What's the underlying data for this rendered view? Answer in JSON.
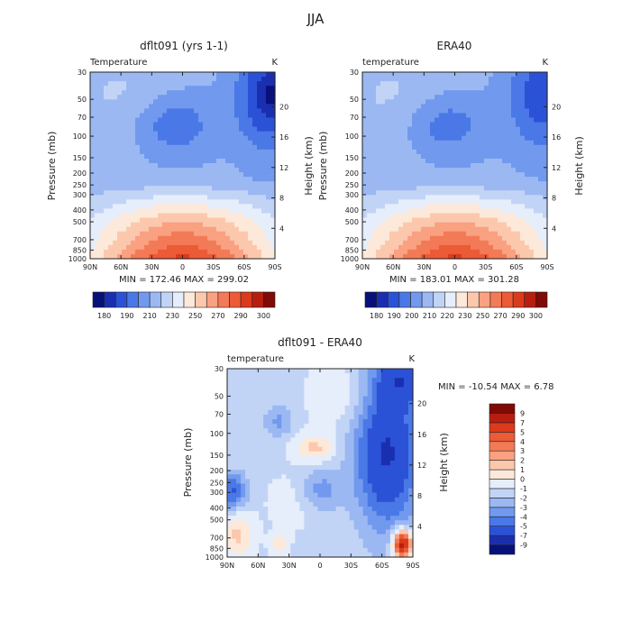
{
  "figure": {
    "title": "JJA"
  },
  "palettes": {
    "absolute": [
      "#08107a",
      "#1a2fb0",
      "#2b52d6",
      "#4a78e6",
      "#7199ee",
      "#9bb8f2",
      "#c2d4f6",
      "#e6eefb",
      "#fde9d9",
      "#fcc8ad",
      "#f9a181",
      "#f37a56",
      "#ec5a36",
      "#dc3a1c",
      "#b81e10",
      "#800a05"
    ],
    "difference": [
      "#08107a",
      "#1a2fb0",
      "#2b52d6",
      "#4a78e6",
      "#7199ee",
      "#9bb8f2",
      "#c2d4f6",
      "#e6eefb",
      "#fde9d9",
      "#fcc8ad",
      "#f9a181",
      "#f37a56",
      "#ec5a36",
      "#dc3a1c",
      "#b81e10",
      "#800a05"
    ]
  },
  "chart_data": [
    {
      "type": "heatmap",
      "title": "dflt091 (yrs 1-1)",
      "left_label": "Temperature",
      "right_label": "K",
      "ylabel": "Pressure (mb)",
      "y2label": "Height (km)",
      "x_ticks": [
        "90N",
        "60N",
        "30N",
        "0",
        "30S",
        "60S",
        "90S"
      ],
      "x_values": [
        90,
        60,
        30,
        0,
        -30,
        -60,
        -90
      ],
      "y_ticks": [
        "30",
        "50",
        "70",
        "100",
        "150",
        "200",
        "250",
        "300",
        "400",
        "500",
        "700",
        "850",
        "1000"
      ],
      "y_values": [
        30,
        50,
        70,
        100,
        150,
        200,
        250,
        300,
        400,
        500,
        700,
        850,
        1000
      ],
      "y2_ticks": [
        "4",
        "8",
        "12",
        "16",
        "20"
      ],
      "y2_values": [
        4,
        8,
        12,
        16,
        20
      ],
      "ylim": [
        1000,
        30
      ],
      "xlim": [
        90,
        -90
      ],
      "stats_text": "MIN = 172.46   MAX = 299.02",
      "min": 172.46,
      "max": 299.02,
      "colorbar_levels": [
        "180",
        "190",
        "200",
        "210",
        "220",
        "230",
        "240",
        "250",
        "260",
        "270",
        "280",
        "290",
        "300"
      ],
      "colorbar_shown": [
        "180",
        "190",
        "210",
        "230",
        "250",
        "270",
        "290",
        "300"
      ]
    },
    {
      "type": "heatmap",
      "title": "ERA40",
      "left_label": "temperature",
      "right_label": "K",
      "ylabel": "Pressure (mb)",
      "y2label": "Height (km)",
      "x_ticks": [
        "90N",
        "60N",
        "30N",
        "0",
        "30S",
        "60S",
        "90S"
      ],
      "x_values": [
        90,
        60,
        30,
        0,
        -30,
        -60,
        -90
      ],
      "y_ticks": [
        "30",
        "50",
        "70",
        "100",
        "150",
        "200",
        "250",
        "300",
        "400",
        "500",
        "700",
        "850",
        "1000"
      ],
      "y_values": [
        30,
        50,
        70,
        100,
        150,
        200,
        250,
        300,
        400,
        500,
        700,
        850,
        1000
      ],
      "y2_ticks": [
        "4",
        "8",
        "12",
        "16",
        "20"
      ],
      "y2_values": [
        4,
        8,
        12,
        16,
        20
      ],
      "ylim": [
        1000,
        30
      ],
      "xlim": [
        90,
        -90
      ],
      "stats_text": "MIN = 183.01   MAX = 301.28",
      "min": 183.01,
      "max": 301.28,
      "colorbar_shown": [
        "180",
        "190",
        "200",
        "210",
        "220",
        "230",
        "250",
        "270",
        "290",
        "300"
      ]
    },
    {
      "type": "heatmap",
      "title": "dflt091 - ERA40",
      "left_label": "temperature",
      "right_label": "K",
      "ylabel": "Pressure (mb)",
      "y2label": "Height (km)",
      "x_ticks": [
        "90N",
        "60N",
        "30N",
        "0",
        "30S",
        "60S",
        "90S"
      ],
      "x_values": [
        90,
        60,
        30,
        0,
        -30,
        -60,
        -90
      ],
      "y_ticks": [
        "30",
        "50",
        "70",
        "100",
        "150",
        "200",
        "250",
        "300",
        "400",
        "500",
        "700",
        "850",
        "1000"
      ],
      "y_values": [
        30,
        50,
        70,
        100,
        150,
        200,
        250,
        300,
        400,
        500,
        700,
        850,
        1000
      ],
      "y2_ticks": [
        "4",
        "8",
        "12",
        "16",
        "20"
      ],
      "y2_values": [
        4,
        8,
        12,
        16,
        20
      ],
      "ylim": [
        1000,
        30
      ],
      "xlim": [
        90,
        -90
      ],
      "stats_text": "MIN = -10.54   MAX =    6.78",
      "min": -10.54,
      "max": 6.78,
      "colorbar_levels": [
        "-9",
        "-7",
        "-5",
        "-4",
        "-3",
        "-2",
        "-1",
        "0",
        "1",
        "2",
        "3",
        "4",
        "5",
        "7",
        "9"
      ]
    }
  ]
}
